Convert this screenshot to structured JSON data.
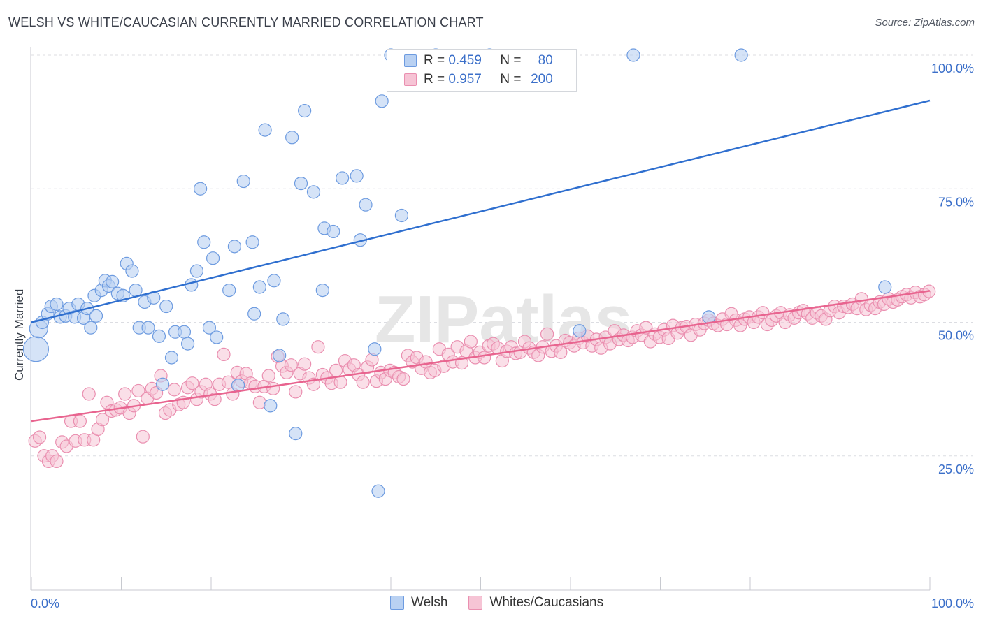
{
  "title": "WELSH VS WHITE/CAUCASIAN CURRENTLY MARRIED CORRELATION CHART",
  "source": "Source: ZipAtlas.com",
  "watermark": "ZIPatlas",
  "legend": {
    "r_label": "R =",
    "n_label": "N =",
    "welsh": {
      "r": "0.459",
      "n": "80"
    },
    "whites": {
      "r": "0.957",
      "n": "200"
    }
  },
  "bottom_legend": {
    "welsh": "Welsh",
    "whites": "Whites/Caucasians"
  },
  "colors": {
    "welsh_fill": "#b9d1f2",
    "welsh_stroke": "#6d9be0",
    "welsh_line": "#2f6fcf",
    "whites_fill": "#f6c4d5",
    "whites_stroke": "#ea8fb0",
    "whites_line": "#e8648f",
    "axis_text": "#3b6fc9"
  },
  "chart_data": {
    "type": "scatter",
    "title": "WELSH VS WHITE/CAUCASIAN CURRENTLY MARRIED CORRELATION CHART",
    "xlabel": "",
    "ylabel": "Currently Married",
    "xlim": [
      0,
      100
    ],
    "ylim": [
      0,
      103
    ],
    "x_tick_labels": {
      "left": "0.0%",
      "right": "100.0%"
    },
    "y_ticks": [
      25,
      50,
      75,
      100
    ],
    "y_tick_labels": [
      "25.0%",
      "50.0%",
      "75.0%",
      "100.0%"
    ],
    "series": [
      {
        "name": "Welsh",
        "r": 0.459,
        "n": 80,
        "trend": {
          "x": [
            0,
            100
          ],
          "y": [
            50.0,
            91.5
          ]
        },
        "points": [
          [
            0.5,
            45.0
          ],
          [
            0.8,
            48.8
          ],
          [
            1.2,
            50.0
          ],
          [
            1.8,
            51.6
          ],
          [
            2.2,
            53.0
          ],
          [
            2.8,
            53.4
          ],
          [
            3.2,
            51.0
          ],
          [
            3.8,
            51.2
          ],
          [
            4.2,
            52.6
          ],
          [
            4.8,
            51.0
          ],
          [
            5.2,
            53.4
          ],
          [
            5.8,
            50.8
          ],
          [
            6.2,
            52.6
          ],
          [
            6.6,
            49.0
          ],
          [
            7.2,
            51.2
          ],
          [
            7.0,
            55.0
          ],
          [
            7.8,
            56.0
          ],
          [
            8.2,
            57.8
          ],
          [
            8.6,
            56.8
          ],
          [
            9.0,
            57.6
          ],
          [
            9.6,
            55.4
          ],
          [
            10.2,
            55.0
          ],
          [
            10.6,
            61.0
          ],
          [
            11.2,
            59.6
          ],
          [
            11.6,
            56.0
          ],
          [
            12.0,
            49.0
          ],
          [
            12.6,
            53.8
          ],
          [
            13.0,
            49.0
          ],
          [
            13.6,
            54.6
          ],
          [
            14.2,
            47.4
          ],
          [
            14.6,
            38.4
          ],
          [
            15.0,
            53.0
          ],
          [
            15.6,
            43.4
          ],
          [
            16.0,
            48.2
          ],
          [
            17.0,
            48.2
          ],
          [
            17.4,
            46.0
          ],
          [
            17.8,
            57.0
          ],
          [
            18.4,
            59.6
          ],
          [
            18.8,
            75.0
          ],
          [
            19.2,
            65.0
          ],
          [
            19.8,
            49.0
          ],
          [
            20.2,
            62.0
          ],
          [
            20.6,
            47.2
          ],
          [
            22.0,
            56.0
          ],
          [
            22.6,
            64.2
          ],
          [
            23.0,
            38.2
          ],
          [
            23.6,
            76.4
          ],
          [
            24.6,
            65.0
          ],
          [
            24.8,
            51.6
          ],
          [
            25.4,
            56.6
          ],
          [
            26.0,
            86.0
          ],
          [
            26.6,
            34.4
          ],
          [
            27.0,
            57.8
          ],
          [
            27.6,
            43.8
          ],
          [
            28.0,
            50.6
          ],
          [
            29.0,
            84.6
          ],
          [
            29.4,
            29.2
          ],
          [
            30.0,
            76.0
          ],
          [
            30.4,
            89.6
          ],
          [
            31.4,
            74.4
          ],
          [
            32.4,
            56.0
          ],
          [
            32.6,
            67.6
          ],
          [
            33.6,
            67.0
          ],
          [
            34.6,
            77.0
          ],
          [
            36.2,
            77.4
          ],
          [
            36.6,
            65.4
          ],
          [
            37.2,
            72.0
          ],
          [
            38.2,
            45.0
          ],
          [
            38.6,
            18.4
          ],
          [
            39.0,
            91.4
          ],
          [
            40.0,
            100.0
          ],
          [
            41.2,
            70.0
          ],
          [
            45.0,
            100.0
          ],
          [
            47.0,
            94.4
          ],
          [
            51.0,
            100.0
          ],
          [
            61.0,
            48.4
          ],
          [
            67.0,
            100.0
          ],
          [
            75.4,
            51.0
          ],
          [
            79.0,
            100.0
          ],
          [
            95.0,
            56.6
          ]
        ]
      },
      {
        "name": "Whites/Caucasians",
        "r": 0.957,
        "n": 200,
        "trend": {
          "x": [
            0,
            100
          ],
          "y": [
            31.5,
            55.9
          ]
        },
        "points": [
          [
            0.4,
            27.8
          ],
          [
            0.9,
            28.5
          ],
          [
            1.4,
            25.0
          ],
          [
            1.9,
            24.0
          ],
          [
            2.3,
            25.0
          ],
          [
            2.8,
            24.0
          ],
          [
            3.4,
            27.6
          ],
          [
            3.9,
            26.8
          ],
          [
            4.4,
            31.5
          ],
          [
            4.9,
            27.8
          ],
          [
            5.4,
            31.5
          ],
          [
            5.9,
            28.0
          ],
          [
            6.4,
            36.6
          ],
          [
            6.9,
            28.0
          ],
          [
            7.4,
            30.0
          ],
          [
            7.9,
            31.8
          ],
          [
            8.4,
            35.0
          ],
          [
            8.9,
            33.4
          ],
          [
            9.4,
            33.6
          ],
          [
            9.9,
            34.0
          ],
          [
            10.4,
            36.6
          ],
          [
            10.9,
            33.0
          ],
          [
            11.4,
            34.4
          ],
          [
            11.9,
            37.2
          ],
          [
            12.4,
            28.6
          ],
          [
            12.9,
            35.8
          ],
          [
            13.4,
            37.6
          ],
          [
            13.9,
            36.8
          ],
          [
            14.4,
            40.0
          ],
          [
            14.9,
            33.0
          ],
          [
            15.4,
            33.6
          ],
          [
            15.9,
            37.4
          ],
          [
            16.4,
            34.6
          ],
          [
            16.9,
            35.0
          ],
          [
            17.4,
            37.8
          ],
          [
            17.9,
            38.6
          ],
          [
            18.4,
            35.6
          ],
          [
            18.9,
            37.0
          ],
          [
            19.4,
            38.4
          ],
          [
            19.9,
            36.6
          ],
          [
            20.4,
            35.6
          ],
          [
            20.9,
            38.4
          ],
          [
            21.4,
            44.0
          ],
          [
            21.9,
            38.8
          ],
          [
            22.4,
            36.6
          ],
          [
            22.9,
            40.6
          ],
          [
            23.4,
            39.0
          ],
          [
            23.9,
            40.4
          ],
          [
            24.4,
            38.6
          ],
          [
            24.9,
            38.0
          ],
          [
            25.4,
            35.0
          ],
          [
            25.9,
            38.0
          ],
          [
            26.4,
            40.0
          ],
          [
            26.9,
            37.6
          ],
          [
            27.4,
            43.6
          ],
          [
            27.9,
            41.8
          ],
          [
            28.4,
            40.6
          ],
          [
            28.9,
            42.0
          ],
          [
            29.4,
            37.0
          ],
          [
            29.9,
            40.4
          ],
          [
            30.4,
            42.2
          ],
          [
            30.9,
            39.6
          ],
          [
            31.4,
            38.4
          ],
          [
            31.9,
            45.4
          ],
          [
            32.4,
            40.2
          ],
          [
            32.9,
            39.6
          ],
          [
            33.4,
            38.6
          ],
          [
            33.9,
            41.0
          ],
          [
            34.4,
            38.8
          ],
          [
            34.9,
            42.8
          ],
          [
            35.4,
            41.2
          ],
          [
            35.9,
            42.0
          ],
          [
            36.4,
            40.2
          ],
          [
            36.9,
            38.8
          ],
          [
            37.4,
            41.6
          ],
          [
            37.9,
            43.0
          ],
          [
            38.4,
            39.0
          ],
          [
            38.9,
            40.6
          ],
          [
            39.4,
            39.4
          ],
          [
            39.9,
            41.0
          ],
          [
            40.4,
            40.6
          ],
          [
            40.9,
            39.8
          ],
          [
            41.4,
            39.4
          ],
          [
            41.9,
            43.8
          ],
          [
            42.4,
            42.6
          ],
          [
            42.9,
            43.4
          ],
          [
            43.4,
            41.4
          ],
          [
            43.9,
            42.6
          ],
          [
            44.4,
            40.6
          ],
          [
            44.9,
            41.0
          ],
          [
            45.4,
            45.0
          ],
          [
            45.9,
            41.8
          ],
          [
            46.4,
            44.0
          ],
          [
            46.9,
            42.6
          ],
          [
            47.4,
            45.4
          ],
          [
            47.9,
            42.4
          ],
          [
            48.4,
            44.6
          ],
          [
            48.9,
            46.4
          ],
          [
            49.4,
            43.4
          ],
          [
            49.9,
            44.4
          ],
          [
            50.4,
            43.4
          ],
          [
            50.9,
            45.6
          ],
          [
            51.4,
            46.0
          ],
          [
            51.9,
            45.2
          ],
          [
            52.4,
            42.8
          ],
          [
            52.9,
            44.6
          ],
          [
            53.4,
            45.4
          ],
          [
            53.9,
            44.2
          ],
          [
            54.4,
            44.4
          ],
          [
            54.9,
            46.4
          ],
          [
            55.4,
            45.2
          ],
          [
            55.9,
            44.4
          ],
          [
            56.4,
            43.8
          ],
          [
            56.9,
            45.4
          ],
          [
            57.4,
            47.8
          ],
          [
            57.9,
            44.6
          ],
          [
            58.4,
            45.6
          ],
          [
            58.9,
            44.4
          ],
          [
            59.4,
            46.6
          ],
          [
            59.9,
            46.2
          ],
          [
            60.4,
            45.6
          ],
          [
            60.9,
            47.0
          ],
          [
            61.4,
            46.2
          ],
          [
            61.9,
            47.4
          ],
          [
            62.4,
            45.6
          ],
          [
            62.9,
            46.8
          ],
          [
            63.4,
            45.2
          ],
          [
            63.9,
            47.2
          ],
          [
            64.4,
            46.0
          ],
          [
            64.9,
            48.4
          ],
          [
            65.4,
            46.8
          ],
          [
            65.9,
            47.6
          ],
          [
            66.4,
            46.6
          ],
          [
            66.9,
            47.2
          ],
          [
            67.4,
            48.4
          ],
          [
            67.9,
            47.6
          ],
          [
            68.4,
            49.0
          ],
          [
            68.9,
            46.4
          ],
          [
            69.4,
            47.8
          ],
          [
            69.9,
            47.2
          ],
          [
            70.4,
            48.6
          ],
          [
            70.9,
            47.0
          ],
          [
            71.4,
            49.4
          ],
          [
            71.9,
            48.0
          ],
          [
            72.4,
            49.0
          ],
          [
            72.9,
            49.2
          ],
          [
            73.4,
            47.6
          ],
          [
            73.9,
            49.6
          ],
          [
            74.4,
            48.6
          ],
          [
            74.9,
            49.8
          ],
          [
            75.4,
            50.4
          ],
          [
            75.9,
            49.8
          ],
          [
            76.4,
            49.4
          ],
          [
            76.9,
            50.6
          ],
          [
            77.4,
            49.6
          ],
          [
            77.9,
            51.6
          ],
          [
            78.4,
            50.4
          ],
          [
            78.9,
            49.4
          ],
          [
            79.4,
            50.6
          ],
          [
            79.9,
            51.0
          ],
          [
            80.4,
            50.0
          ],
          [
            80.9,
            51.0
          ],
          [
            81.4,
            51.8
          ],
          [
            81.9,
            49.6
          ],
          [
            82.4,
            50.4
          ],
          [
            82.9,
            51.2
          ],
          [
            83.4,
            51.8
          ],
          [
            83.9,
            50.0
          ],
          [
            84.4,
            51.4
          ],
          [
            84.9,
            50.8
          ],
          [
            85.4,
            51.8
          ],
          [
            85.9,
            52.2
          ],
          [
            86.4,
            51.6
          ],
          [
            86.9,
            50.8
          ],
          [
            87.4,
            51.8
          ],
          [
            87.9,
            51.2
          ],
          [
            88.4,
            50.6
          ],
          [
            88.9,
            52.2
          ],
          [
            89.4,
            53.0
          ],
          [
            89.9,
            51.8
          ],
          [
            90.4,
            53.0
          ],
          [
            90.9,
            52.8
          ],
          [
            91.4,
            53.4
          ],
          [
            91.9,
            52.6
          ],
          [
            92.4,
            54.4
          ],
          [
            92.9,
            52.4
          ],
          [
            93.4,
            53.2
          ],
          [
            93.9,
            52.6
          ],
          [
            94.4,
            53.8
          ],
          [
            94.9,
            53.4
          ],
          [
            95.4,
            54.4
          ],
          [
            95.9,
            53.8
          ],
          [
            96.4,
            54.2
          ],
          [
            96.9,
            54.8
          ],
          [
            97.4,
            55.2
          ],
          [
            97.9,
            54.6
          ],
          [
            98.4,
            55.6
          ],
          [
            98.9,
            54.8
          ],
          [
            99.4,
            55.2
          ],
          [
            99.9,
            55.8
          ]
        ]
      }
    ]
  }
}
